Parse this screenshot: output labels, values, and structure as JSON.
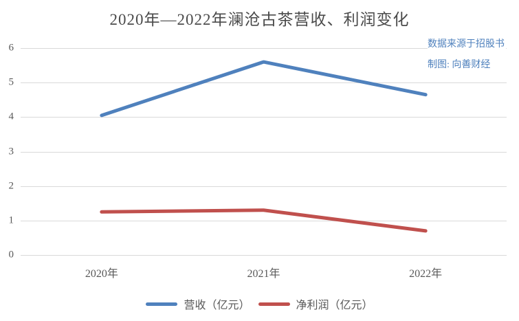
{
  "title": "2020年—2022年澜沧古茶营收、利润变化",
  "annotations": {
    "source": "数据来源于招股书",
    "credit": "制图: 向善财经",
    "text_color": "#4f81bd"
  },
  "chart_data": {
    "type": "line",
    "title": "2020年—2022年澜沧古茶营收、利润变化",
    "categories": [
      "2020年",
      "2021年",
      "2022年"
    ],
    "series": [
      {
        "name": "营收（亿元）",
        "color": "#4f81bd",
        "values": [
          4.05,
          5.6,
          4.65
        ]
      },
      {
        "name": "净利润（亿元）",
        "color": "#c0504d",
        "values": [
          1.25,
          1.3,
          0.7
        ]
      }
    ],
    "xlabel": "",
    "ylabel": "",
    "ylim": [
      0,
      6
    ],
    "yticks": [
      0,
      1,
      2,
      3,
      4,
      5,
      6
    ],
    "grid": true,
    "legend_position": "bottom",
    "gridline_color": "#d9d9d9",
    "tick_label_color": "#595959",
    "title_color": "#4a4a4a",
    "background_color": "#ffffff"
  }
}
